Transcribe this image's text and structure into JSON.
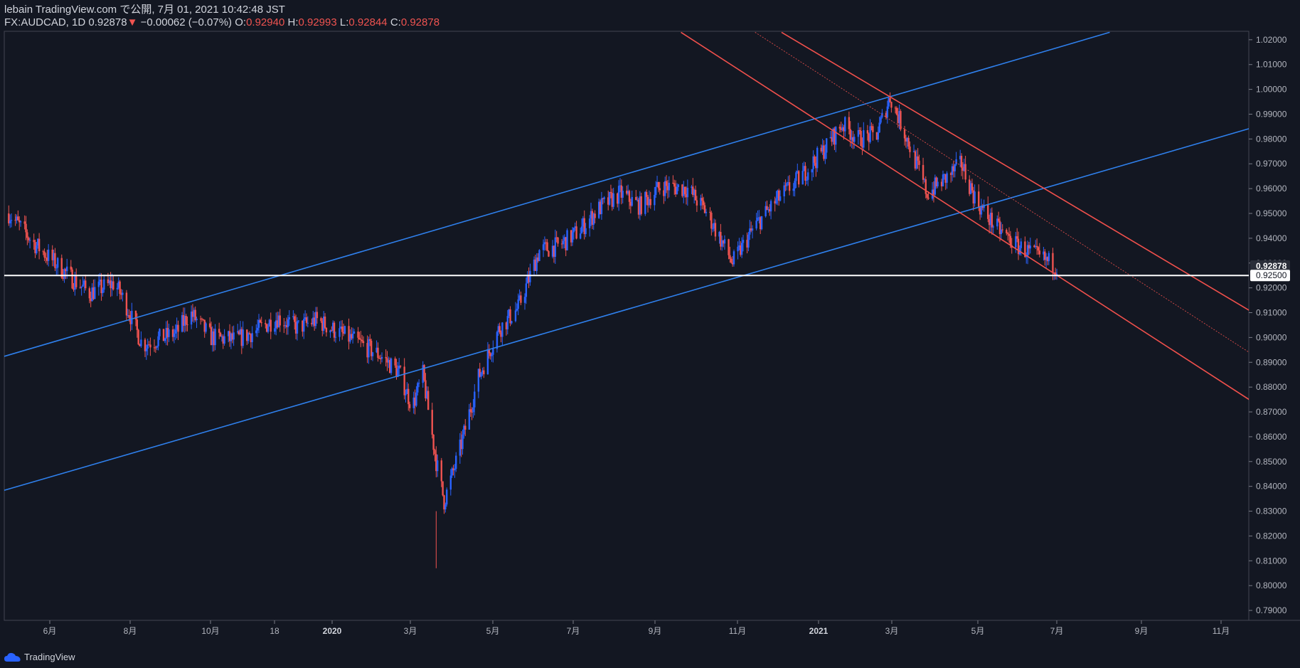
{
  "header": {
    "publish": "lebain TradingView.com で公開, 7月 01, 2021 10:42:48 JST",
    "symbol": "FX:AUDCAD, 1D",
    "last": "0.92878",
    "arrow": "▼",
    "change": "−0.00062 (−0.07%)",
    "o_label": "O:",
    "o_value": "0.92940",
    "h_label": "H:",
    "h_value": "0.92993",
    "l_label": "L:",
    "l_value": "0.92844",
    "c_label": "C:",
    "c_value": "0.92878"
  },
  "branding": {
    "label": "TradingView",
    "icon": "tradingview-cloud-icon"
  },
  "colors": {
    "background": "#131722",
    "bull": "#2962ff",
    "bear": "#ef5350",
    "channel_up": "#2f80ed",
    "channel_down": "#f0504c",
    "support": "#ffffff"
  },
  "chart_data": {
    "type": "line",
    "description_series": "AUDCAD daily close (approximate path, candlestick chart)",
    "y_ticks": [
      "1.02000",
      "1.01000",
      "1.00000",
      "0.99000",
      "0.98000",
      "0.97000",
      "0.96000",
      "0.95000",
      "0.94000",
      "0.93000",
      "0.92000",
      "0.91000",
      "0.90000",
      "0.89000",
      "0.88000",
      "0.87000",
      "0.86000",
      "0.85000",
      "0.84000",
      "0.83000",
      "0.82000",
      "0.81000",
      "0.80000",
      "0.79000"
    ],
    "ylim": [
      0.786,
      1.0234
    ],
    "x_ticks": [
      "6月",
      "8月",
      "10月",
      "18",
      "2020",
      "3月",
      "5月",
      "7月",
      "9月",
      "11月",
      "2021",
      "3月",
      "5月",
      "7月",
      "9月",
      "11月"
    ],
    "x_ticks_bold": [
      "2020",
      "2021"
    ],
    "price_labels": {
      "last": "0.92878",
      "level": "0.92500"
    },
    "series": [
      {
        "x": [
          "2019-05-01",
          "2019-05-20",
          "2019-06-15",
          "2019-07-01",
          "2019-07-20",
          "2019-07-28",
          "2019-08-10",
          "2019-09-05",
          "2019-09-15",
          "2019-10-01",
          "2019-10-20",
          "2019-11-05",
          "2019-11-20",
          "2019-12-05",
          "2019-12-20",
          "2020-01-05",
          "2020-01-20",
          "2020-02-05",
          "2020-02-20",
          "2020-03-01",
          "2020-03-09",
          "2020-03-19",
          "2020-03-25",
          "2020-04-05",
          "2020-04-20",
          "2020-05-05",
          "2020-05-20",
          "2020-06-05",
          "2020-06-20",
          "2020-07-05",
          "2020-07-20",
          "2020-08-05",
          "2020-08-20",
          "2020-09-05",
          "2020-09-25",
          "2020-10-10",
          "2020-10-29",
          "2020-11-15",
          "2020-12-01",
          "2020-12-20",
          "2021-01-05",
          "2021-01-20",
          "2021-02-01",
          "2021-02-15",
          "2021-02-25",
          "2021-03-10",
          "2021-03-25",
          "2021-04-10",
          "2021-04-20",
          "2021-05-01",
          "2021-05-15",
          "2021-06-01",
          "2021-06-15",
          "2021-07-01"
        ],
        "y": [
          0.95,
          0.938,
          0.925,
          0.918,
          0.922,
          0.914,
          0.897,
          0.902,
          0.91,
          0.9,
          0.899,
          0.903,
          0.908,
          0.904,
          0.907,
          0.902,
          0.898,
          0.893,
          0.886,
          0.872,
          0.885,
          0.85,
          0.834,
          0.853,
          0.884,
          0.903,
          0.912,
          0.935,
          0.937,
          0.943,
          0.952,
          0.958,
          0.953,
          0.961,
          0.96,
          0.95,
          0.93,
          0.945,
          0.955,
          0.965,
          0.975,
          0.986,
          0.98,
          0.982,
          0.997,
          0.98,
          0.958,
          0.965,
          0.97,
          0.955,
          0.945,
          0.937,
          0.933,
          0.9288
        ]
      }
    ],
    "trendlines": {
      "ascending_channel_upper": [
        [
          "2019-04-25",
          0.892
        ],
        [
          "2021-08-10",
          1.023
        ]
      ],
      "ascending_channel_lower": [
        [
          "2019-04-25",
          0.838
        ],
        [
          "2021-12-31",
          0.99
        ]
      ],
      "descending_channel_upper": [
        [
          "2020-12-05",
          1.023
        ],
        [
          "2021-12-31",
          0.899
        ]
      ],
      "descending_channel_lower": [
        [
          "2020-09-20",
          1.023
        ],
        [
          "2021-12-31",
          0.862
        ]
      ],
      "descending_mid_dotted": [
        [
          "2020-11-15",
          1.023
        ],
        [
          "2021-12-31",
          0.881
        ]
      ],
      "horizontal_support": 0.925
    }
  }
}
